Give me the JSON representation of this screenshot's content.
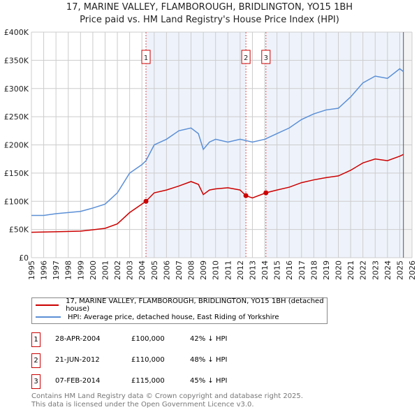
{
  "chart_data": {
    "type": "line",
    "title": "17, MARINE VALLEY, FLAMBOROUGH, BRIDLINGTON, YO15 1BH",
    "subtitle": "Price paid vs. HM Land Registry's House Price Index (HPI)",
    "xlim": [
      1995,
      2026
    ],
    "ylim": [
      0,
      400000
    ],
    "x_ticks": [
      "1995",
      "1996",
      "1997",
      "1998",
      "1999",
      "2000",
      "2001",
      "2002",
      "2003",
      "2004",
      "2005",
      "2006",
      "2007",
      "2008",
      "2009",
      "2010",
      "2011",
      "2012",
      "2013",
      "2014",
      "2015",
      "2016",
      "2017",
      "2018",
      "2019",
      "2020",
      "2021",
      "2022",
      "2023",
      "2024",
      "2025",
      "2026"
    ],
    "y_ticks": [
      {
        "v": 0,
        "label": "£0"
      },
      {
        "v": 50000,
        "label": "£50K"
      },
      {
        "v": 100000,
        "label": "£100K"
      },
      {
        "v": 150000,
        "label": "£150K"
      },
      {
        "v": 200000,
        "label": "£200K"
      },
      {
        "v": 250000,
        "label": "£250K"
      },
      {
        "v": 300000,
        "label": "£300K"
      },
      {
        "v": 350000,
        "label": "£350K"
      },
      {
        "v": 400000,
        "label": "£400K"
      }
    ],
    "series": [
      {
        "name": "17, MARINE VALLEY, FLAMBOROUGH, BRIDLINGTON, YO15 1BH (detached house)",
        "color": "#cc0000",
        "x": [
          1995,
          1997,
          1999,
          2001,
          2002,
          2003,
          2004.33,
          2005,
          2006,
          2007,
          2008,
          2008.6,
          2009,
          2009.5,
          2010,
          2011,
          2012,
          2012.47,
          2013,
          2014.1,
          2015,
          2016,
          2017,
          2018,
          2019,
          2020,
          2021,
          2022,
          2023,
          2024,
          2025,
          2025.3
        ],
        "y": [
          45000,
          46000,
          47000,
          52000,
          60000,
          80000,
          100000,
          115000,
          120000,
          127000,
          135000,
          130000,
          112000,
          120000,
          122000,
          124000,
          120000,
          110000,
          106000,
          115000,
          120000,
          125000,
          133000,
          138000,
          142000,
          145000,
          155000,
          168000,
          175000,
          172000,
          180000,
          183000
        ]
      },
      {
        "name": "HPI: Average price, detached house, East Riding of Yorkshire",
        "color": "#5b8fd6",
        "x": [
          1995,
          1996,
          1997,
          1998,
          1999,
          2000,
          2001,
          2002,
          2003,
          2004,
          2004.33,
          2005,
          2006,
          2007,
          2008,
          2008.6,
          2009,
          2009.5,
          2010,
          2011,
          2012,
          2013,
          2014,
          2015,
          2016,
          2017,
          2018,
          2019,
          2020,
          2021,
          2022,
          2023,
          2024,
          2025,
          2025.3
        ],
        "y": [
          75000,
          75000,
          78000,
          80000,
          82000,
          88000,
          95000,
          115000,
          150000,
          165000,
          172000,
          200000,
          210000,
          225000,
          230000,
          220000,
          192000,
          205000,
          210000,
          205000,
          210000,
          205000,
          210000,
          220000,
          230000,
          245000,
          255000,
          262000,
          265000,
          285000,
          310000,
          322000,
          318000,
          335000,
          330000
        ]
      }
    ],
    "sales": [
      {
        "label": "1",
        "date": "28-APR-2004",
        "x": 2004.33,
        "price": "£100,000",
        "value": 100000,
        "hpi": "42% ↓ HPI"
      },
      {
        "label": "2",
        "date": "21-JUN-2012",
        "x": 2012.47,
        "price": "£110,000",
        "value": 110000,
        "hpi": "48% ↓ HPI"
      },
      {
        "label": "3",
        "date": "07-FEB-2014",
        "x": 2014.1,
        "price": "£115,000",
        "value": 115000,
        "hpi": "45% ↓ HPI"
      }
    ],
    "legend_position": "below"
  },
  "footer": [
    "Contains HM Land Registry data © Crown copyright and database right 2025.",
    "This data is licensed under the Open Government Licence v3.0."
  ]
}
